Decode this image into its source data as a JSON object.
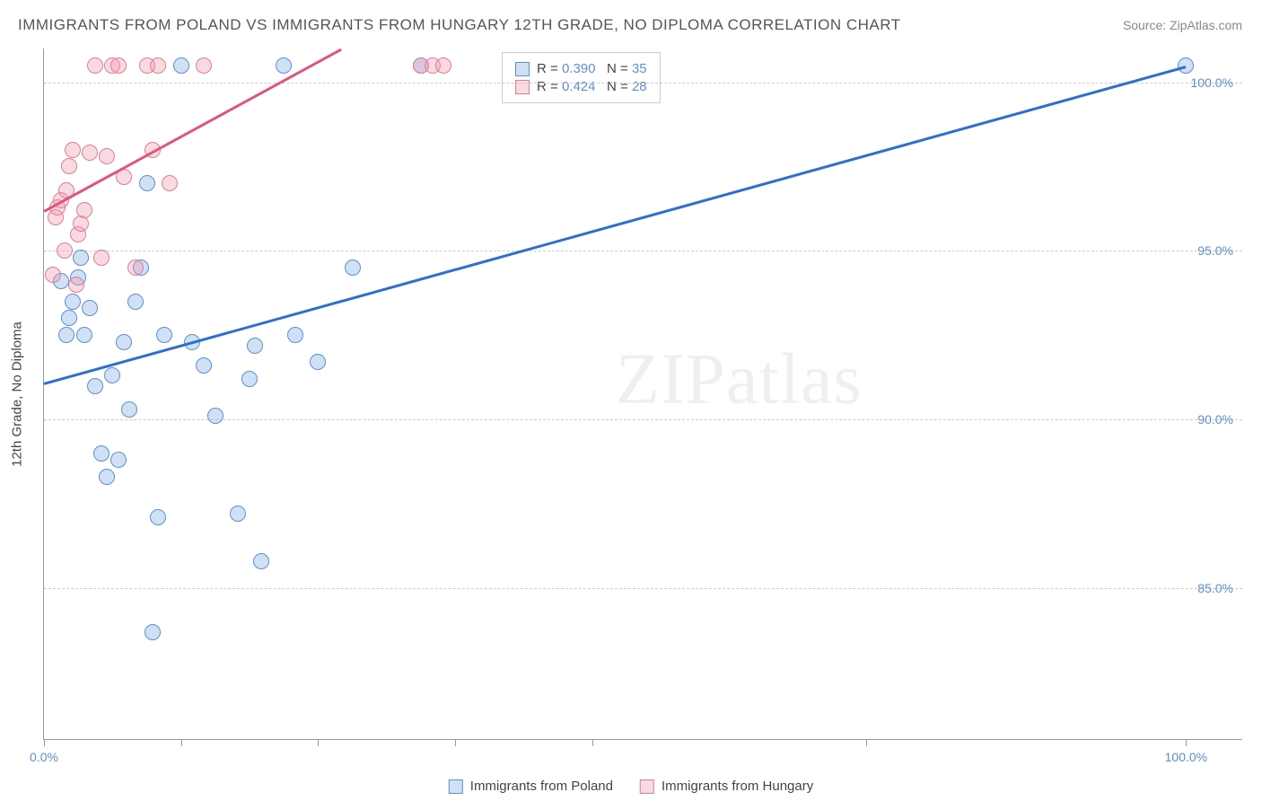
{
  "title": "IMMIGRANTS FROM POLAND VS IMMIGRANTS FROM HUNGARY 12TH GRADE, NO DIPLOMA CORRELATION CHART",
  "source_prefix": "Source: ",
  "source_name": "ZipAtlas.com",
  "yaxis_title": "12th Grade, No Diploma",
  "watermark_a": "ZIP",
  "watermark_b": "atlas",
  "chart": {
    "type": "scatter",
    "xlim": [
      0,
      105
    ],
    "ylim": [
      80.5,
      101
    ],
    "y_gridlines": [
      85.0,
      90.0,
      95.0,
      100.0
    ],
    "y_tick_labels": [
      "85.0%",
      "90.0%",
      "95.0%",
      "100.0%"
    ],
    "y_tick_color": "#5b8fd6",
    "y_tick_fontsize": 14,
    "x_ticks": [
      0,
      12,
      24,
      36,
      48,
      72,
      100
    ],
    "x_tick_labels": {
      "0": "0.0%",
      "100": "100.0%"
    },
    "grid_color": "#cccccc",
    "axis_color": "#999999",
    "background_color": "#ffffff",
    "marker_radius": 9,
    "marker_border_width": 1.2,
    "line_width": 2.5
  },
  "series": [
    {
      "name": "Immigrants from Poland",
      "fill_color": "rgba(120,170,230,0.35)",
      "border_color": "#5b8fd6",
      "line_color": "#2d6fd1",
      "r_value": "0.390",
      "n_value": "35",
      "trend": {
        "x1": 0,
        "y1": 91.1,
        "x2": 100,
        "y2": 100.5
      },
      "points": [
        [
          1.5,
          94.1
        ],
        [
          2.0,
          92.5
        ],
        [
          2.2,
          93.0
        ],
        [
          2.5,
          93.5
        ],
        [
          3.0,
          94.2
        ],
        [
          3.2,
          94.8
        ],
        [
          3.5,
          92.5
        ],
        [
          4.0,
          93.3
        ],
        [
          4.5,
          91.0
        ],
        [
          5.0,
          89.0
        ],
        [
          5.5,
          88.3
        ],
        [
          6.0,
          91.3
        ],
        [
          6.5,
          88.8
        ],
        [
          7.0,
          92.3
        ],
        [
          7.5,
          90.3
        ],
        [
          8.0,
          93.5
        ],
        [
          8.5,
          94.5
        ],
        [
          9.0,
          97.0
        ],
        [
          9.5,
          83.7
        ],
        [
          10.0,
          87.1
        ],
        [
          10.5,
          92.5
        ],
        [
          12.0,
          100.5
        ],
        [
          13.0,
          92.3
        ],
        [
          14.0,
          91.6
        ],
        [
          15.0,
          90.1
        ],
        [
          17.0,
          87.2
        ],
        [
          18.0,
          91.2
        ],
        [
          18.5,
          92.2
        ],
        [
          19.0,
          85.8
        ],
        [
          21.0,
          100.5
        ],
        [
          22.0,
          92.5
        ],
        [
          24.0,
          91.7
        ],
        [
          27.0,
          94.5
        ],
        [
          33.0,
          100.5
        ],
        [
          100.0,
          100.5
        ]
      ]
    },
    {
      "name": "Immigrants from Hungary",
      "fill_color": "rgba(240,150,170,0.35)",
      "border_color": "#e07d97",
      "line_color": "#e05480",
      "r_value": "0.424",
      "n_value": "28",
      "trend": {
        "x1": 0,
        "y1": 96.2,
        "x2": 26,
        "y2": 101.0
      },
      "points": [
        [
          0.8,
          94.3
        ],
        [
          1.0,
          96.0
        ],
        [
          1.2,
          96.3
        ],
        [
          1.5,
          96.5
        ],
        [
          1.8,
          95.0
        ],
        [
          2.0,
          96.8
        ],
        [
          2.2,
          97.5
        ],
        [
          2.5,
          98.0
        ],
        [
          2.8,
          94.0
        ],
        [
          3.0,
          95.5
        ],
        [
          3.2,
          95.8
        ],
        [
          3.5,
          96.2
        ],
        [
          4.0,
          97.9
        ],
        [
          4.5,
          100.5
        ],
        [
          5.0,
          94.8
        ],
        [
          5.5,
          97.8
        ],
        [
          6.0,
          100.5
        ],
        [
          6.5,
          100.5
        ],
        [
          7.0,
          97.2
        ],
        [
          8.0,
          94.5
        ],
        [
          9.0,
          100.5
        ],
        [
          9.5,
          98.0
        ],
        [
          10.0,
          100.5
        ],
        [
          11.0,
          97.0
        ],
        [
          14.0,
          100.5
        ],
        [
          33.0,
          100.5
        ],
        [
          34.0,
          100.5
        ],
        [
          35.0,
          100.5
        ]
      ]
    }
  ],
  "legend": {
    "r_label": "R = ",
    "n_label": "N = "
  }
}
